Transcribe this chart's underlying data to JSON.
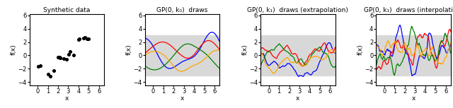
{
  "title1": "Synthetic data",
  "title2": "GP(0, k₀)  draws",
  "title3": "GP(0, k₁)  draws (extrapolation)",
  "title4": "GP(0, k₁)  draws (interpolation)",
  "xlabel": "x",
  "ylabel": "f(x)",
  "scatter_x": [
    0.05,
    0.25,
    1.0,
    1.25,
    1.6,
    2.0,
    2.05,
    2.08,
    2.12,
    2.18,
    2.22,
    2.55,
    2.8,
    3.05,
    3.2,
    3.55,
    4.0,
    4.1,
    4.5,
    4.65,
    4.85,
    4.95
  ],
  "scatter_y": [
    -1.7,
    -1.55,
    -2.8,
    -3.1,
    -2.3,
    -0.3,
    -0.28,
    -0.32,
    -0.27,
    -0.33,
    -0.35,
    -0.45,
    -0.55,
    0.1,
    0.55,
    0.05,
    2.35,
    2.45,
    2.55,
    2.65,
    2.5,
    2.45
  ],
  "ylim_scatter": [
    -4.5,
    6.2
  ],
  "ylim_gp": [
    -4.5,
    6.2
  ],
  "xlim": [
    -0.8,
    6.5
  ],
  "shade_y1": -3.0,
  "shade_y2": 3.0,
  "shade_color": "#d8d8d8",
  "line_colors": [
    "blue",
    "red",
    "green",
    "orange"
  ],
  "background": "white",
  "yticks": [
    -4,
    -2,
    0,
    2,
    4,
    6
  ],
  "xticks": [
    0,
    1,
    2,
    3,
    4,
    5,
    6
  ]
}
